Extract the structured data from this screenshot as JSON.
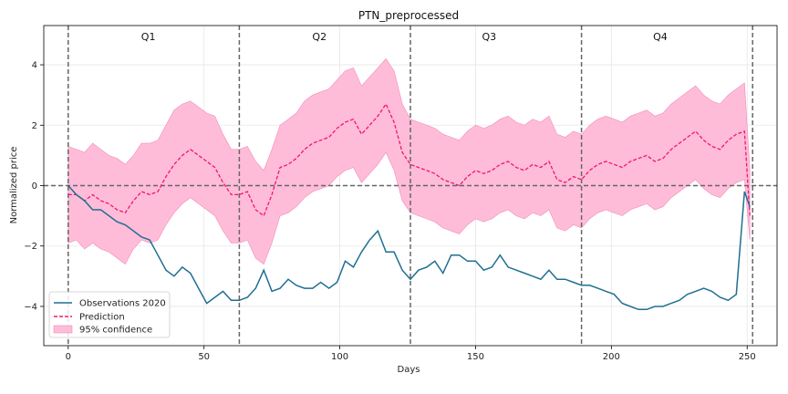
{
  "chart_data": {
    "type": "line",
    "title": "PTN_preprocessed",
    "xlabel": "Days",
    "ylabel": "Normalized price",
    "xlim": [
      -9,
      261
    ],
    "ylim": [
      -5.3,
      5.3
    ],
    "xticks": [
      0,
      50,
      100,
      150,
      200,
      250
    ],
    "yticks": [
      -4,
      -2,
      0,
      2,
      4
    ],
    "grid": true,
    "legend_position": "bottom-left",
    "colors": {
      "observations": "#1f6f93",
      "prediction": "#f0166e",
      "confidence": "#ffbcd8",
      "confidence_edge": "#f08bbc",
      "reference": "#666666"
    },
    "reference_hline": 0,
    "quarter_boundaries": [
      0,
      63,
      126,
      189,
      252
    ],
    "quarters": [
      {
        "label": "Q1",
        "x": 29.5
      },
      {
        "label": "Q2",
        "x": 92.5
      },
      {
        "label": "Q3",
        "x": 155
      },
      {
        "label": "Q4",
        "x": 218
      }
    ],
    "legend": [
      {
        "key": "observations",
        "label": "Observations 2020"
      },
      {
        "key": "prediction",
        "label": "Prediction"
      },
      {
        "key": "confidence",
        "label": "95% confidence"
      }
    ],
    "observations": {
      "name": "Observations 2020",
      "x": [
        0,
        3,
        6,
        9,
        12,
        15,
        18,
        21,
        24,
        27,
        30,
        33,
        36,
        39,
        42,
        45,
        48,
        51,
        54,
        57,
        60,
        63,
        66,
        69,
        72,
        75,
        78,
        81,
        84,
        87,
        90,
        93,
        96,
        99,
        102,
        105,
        108,
        111,
        114,
        117,
        120,
        123,
        126,
        129,
        132,
        135,
        138,
        141,
        144,
        147,
        150,
        153,
        156,
        159,
        162,
        165,
        168,
        171,
        174,
        177,
        180,
        183,
        186,
        189,
        192,
        195,
        198,
        201,
        204,
        207,
        210,
        213,
        216,
        219,
        222,
        225,
        228,
        231,
        234,
        237,
        240,
        243,
        246,
        249,
        251
      ],
      "values": [
        0.0,
        -0.3,
        -0.5,
        -0.8,
        -0.8,
        -1.0,
        -1.2,
        -1.3,
        -1.5,
        -1.7,
        -1.8,
        -2.3,
        -2.8,
        -3.0,
        -2.7,
        -2.9,
        -3.4,
        -3.9,
        -3.7,
        -3.5,
        -3.8,
        -3.8,
        -3.7,
        -3.4,
        -2.8,
        -3.5,
        -3.4,
        -3.1,
        -3.3,
        -3.4,
        -3.4,
        -3.2,
        -3.4,
        -3.2,
        -2.5,
        -2.7,
        -2.2,
        -1.8,
        -1.5,
        -2.2,
        -2.2,
        -2.8,
        -3.1,
        -2.8,
        -2.7,
        -2.5,
        -2.9,
        -2.3,
        -2.3,
        -2.5,
        -2.5,
        -2.8,
        -2.7,
        -2.3,
        -2.7,
        -2.8,
        -2.9,
        -3.0,
        -3.1,
        -2.8,
        -3.1,
        -3.1,
        -3.2,
        -3.3,
        -3.3,
        -3.4,
        -3.5,
        -3.6,
        -3.9,
        -4.0,
        -4.1,
        -4.1,
        -4.0,
        -4.0,
        -3.9,
        -3.8,
        -3.6,
        -3.5,
        -3.4,
        -3.5,
        -3.7,
        -3.8,
        -3.6,
        -0.2,
        -0.7
      ]
    },
    "prediction": {
      "name": "Prediction",
      "x": [
        0,
        3,
        6,
        9,
        12,
        15,
        18,
        21,
        24,
        27,
        30,
        33,
        36,
        39,
        42,
        45,
        48,
        51,
        54,
        57,
        60,
        63,
        66,
        69,
        72,
        75,
        78,
        81,
        84,
        87,
        90,
        93,
        96,
        99,
        102,
        105,
        108,
        111,
        114,
        117,
        120,
        123,
        126,
        129,
        132,
        135,
        138,
        141,
        144,
        147,
        150,
        153,
        156,
        159,
        162,
        165,
        168,
        171,
        174,
        177,
        180,
        183,
        186,
        189,
        192,
        195,
        198,
        201,
        204,
        207,
        210,
        213,
        216,
        219,
        222,
        225,
        228,
        231,
        234,
        237,
        240,
        243,
        246,
        249,
        251
      ],
      "values": [
        -0.3,
        -0.3,
        -0.5,
        -0.3,
        -0.5,
        -0.6,
        -0.8,
        -0.9,
        -0.5,
        -0.2,
        -0.3,
        -0.2,
        0.3,
        0.7,
        1.0,
        1.2,
        1.0,
        0.8,
        0.6,
        0.1,
        -0.3,
        -0.3,
        -0.2,
        -0.8,
        -1.0,
        -0.3,
        0.6,
        0.7,
        0.9,
        1.2,
        1.4,
        1.5,
        1.6,
        1.9,
        2.1,
        2.2,
        1.7,
        2.0,
        2.3,
        2.7,
        2.1,
        1.1,
        0.7,
        0.6,
        0.5,
        0.4,
        0.2,
        0.1,
        0.0,
        0.3,
        0.5,
        0.4,
        0.5,
        0.7,
        0.8,
        0.6,
        0.5,
        0.7,
        0.6,
        0.8,
        0.2,
        0.1,
        0.3,
        0.2,
        0.5,
        0.7,
        0.8,
        0.7,
        0.6,
        0.8,
        0.9,
        1.0,
        0.8,
        0.9,
        1.2,
        1.4,
        1.6,
        1.8,
        1.5,
        1.3,
        1.2,
        1.5,
        1.7,
        1.8,
        -1.0
      ]
    },
    "confidence": {
      "name": "95% confidence",
      "x": [
        0,
        3,
        6,
        9,
        12,
        15,
        18,
        21,
        24,
        27,
        30,
        33,
        36,
        39,
        42,
        45,
        48,
        51,
        54,
        57,
        60,
        63,
        66,
        69,
        72,
        75,
        78,
        81,
        84,
        87,
        90,
        93,
        96,
        99,
        102,
        105,
        108,
        111,
        114,
        117,
        120,
        123,
        126,
        129,
        132,
        135,
        138,
        141,
        144,
        147,
        150,
        153,
        156,
        159,
        162,
        165,
        168,
        171,
        174,
        177,
        180,
        183,
        186,
        189,
        192,
        195,
        198,
        201,
        204,
        207,
        210,
        213,
        216,
        219,
        222,
        225,
        228,
        231,
        234,
        237,
        240,
        243,
        246,
        249,
        251
      ],
      "upper": [
        1.3,
        1.2,
        1.1,
        1.4,
        1.2,
        1.0,
        0.9,
        0.7,
        1.0,
        1.4,
        1.4,
        1.5,
        2.0,
        2.5,
        2.7,
        2.8,
        2.6,
        2.4,
        2.3,
        1.7,
        1.2,
        1.2,
        1.3,
        0.8,
        0.5,
        1.2,
        2.0,
        2.2,
        2.4,
        2.8,
        3.0,
        3.1,
        3.2,
        3.5,
        3.8,
        3.9,
        3.3,
        3.6,
        3.9,
        4.2,
        3.8,
        2.7,
        2.2,
        2.1,
        2.0,
        1.9,
        1.7,
        1.6,
        1.5,
        1.8,
        2.0,
        1.9,
        2.0,
        2.2,
        2.3,
        2.1,
        2.0,
        2.2,
        2.1,
        2.3,
        1.7,
        1.6,
        1.8,
        1.7,
        2.0,
        2.2,
        2.3,
        2.2,
        2.1,
        2.3,
        2.4,
        2.5,
        2.3,
        2.4,
        2.7,
        2.9,
        3.1,
        3.3,
        3.0,
        2.8,
        2.7,
        3.0,
        3.2,
        3.4,
        0.5
      ],
      "lower": [
        -1.9,
        -1.8,
        -2.1,
        -1.9,
        -2.1,
        -2.2,
        -2.4,
        -2.6,
        -2.1,
        -1.8,
        -1.9,
        -1.8,
        -1.3,
        -0.9,
        -0.6,
        -0.4,
        -0.6,
        -0.8,
        -1.0,
        -1.5,
        -1.9,
        -1.9,
        -1.8,
        -2.4,
        -2.6,
        -1.9,
        -1.0,
        -0.9,
        -0.7,
        -0.4,
        -0.2,
        -0.1,
        0.0,
        0.3,
        0.5,
        0.6,
        0.1,
        0.4,
        0.7,
        1.1,
        0.5,
        -0.5,
        -0.9,
        -1.0,
        -1.1,
        -1.2,
        -1.4,
        -1.5,
        -1.6,
        -1.3,
        -1.1,
        -1.2,
        -1.1,
        -0.9,
        -0.8,
        -1.0,
        -1.1,
        -0.9,
        -1.0,
        -0.8,
        -1.4,
        -1.5,
        -1.3,
        -1.4,
        -1.1,
        -0.9,
        -0.8,
        -0.9,
        -1.0,
        -0.8,
        -0.7,
        -0.6,
        -0.8,
        -0.7,
        -0.4,
        -0.2,
        0.0,
        0.2,
        -0.1,
        -0.3,
        -0.4,
        -0.1,
        0.1,
        0.2,
        -1.8
      ]
    }
  }
}
